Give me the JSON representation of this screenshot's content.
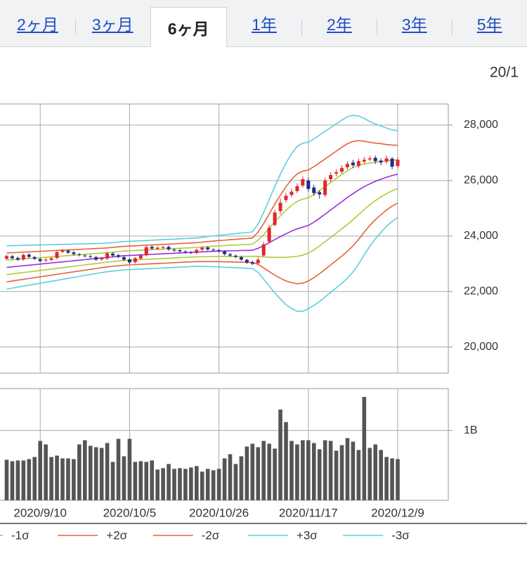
{
  "tabs": [
    {
      "label": "2ヶ月"
    },
    {
      "label": "3ヶ月"
    },
    {
      "label": "6ヶ月",
      "selected": true
    },
    {
      "label": "1年"
    },
    {
      "label": "2年"
    },
    {
      "label": "3年"
    },
    {
      "label": "5年"
    }
  ],
  "date_label": "20/1",
  "chart_data": [
    {
      "type": "candlestick",
      "up_color": "#e0262b",
      "down_color": "#1b2d8c",
      "grid": true,
      "ylim": [
        19060,
        28760
      ],
      "yticks": [
        {
          "value": 20000,
          "label": "20,000"
        },
        {
          "value": 22000,
          "label": "22,000"
        },
        {
          "value": 24000,
          "label": "24,000"
        },
        {
          "value": 26000,
          "label": "26,000"
        },
        {
          "value": 28000,
          "label": "28,000"
        }
      ],
      "open": [
        23180,
        23270,
        23210,
        23160,
        23330,
        23240,
        23170,
        23120,
        23140,
        23210,
        23430,
        23470,
        23410,
        23340,
        23300,
        23270,
        23240,
        23160,
        23190,
        23370,
        23310,
        23240,
        23160,
        23060,
        23190,
        23310,
        23610,
        23540,
        23570,
        23610,
        23510,
        23490,
        23440,
        23410,
        23390,
        23510,
        23590,
        23510,
        23490,
        23440,
        23340,
        23290,
        23240,
        23140,
        23060,
        23020,
        23300,
        23800,
        24400,
        24900,
        25300,
        25480,
        25620,
        25820,
        26000,
        25750,
        25580,
        25480,
        26050,
        26250,
        26320,
        26480,
        26650,
        26520,
        26680,
        26760,
        26820,
        26720,
        26680,
        26790,
        26520
      ],
      "high": [
        23330,
        23320,
        23260,
        23370,
        23380,
        23290,
        23220,
        23200,
        23250,
        23470,
        23530,
        23520,
        23460,
        23390,
        23350,
        23320,
        23290,
        23250,
        23430,
        23420,
        23360,
        23290,
        23210,
        23250,
        23350,
        23650,
        23660,
        23630,
        23650,
        23660,
        23560,
        23540,
        23490,
        23460,
        23550,
        23630,
        23640,
        23560,
        23540,
        23490,
        23390,
        23340,
        23290,
        23190,
        23110,
        23250,
        23800,
        24400,
        24950,
        25350,
        25550,
        25700,
        25900,
        26150,
        26100,
        25850,
        25650,
        26100,
        26300,
        26400,
        26550,
        26700,
        26750,
        26800,
        26850,
        26900,
        26900,
        26800,
        26900,
        26850,
        26850
      ],
      "low": [
        23130,
        23150,
        23100,
        23110,
        23200,
        23130,
        23050,
        23070,
        23090,
        23160,
        23380,
        23350,
        23300,
        23270,
        23230,
        23200,
        23100,
        23110,
        23140,
        23250,
        23200,
        23100,
        23000,
        23010,
        23140,
        23260,
        23500,
        23490,
        23520,
        23470,
        23430,
        23400,
        23370,
        23350,
        23340,
        23460,
        23470,
        23450,
        23400,
        23300,
        23250,
        23200,
        23100,
        23000,
        22950,
        22970,
        23250,
        23750,
        24350,
        24800,
        25200,
        25400,
        25550,
        25750,
        25600,
        25450,
        25350,
        25400,
        25950,
        26150,
        26250,
        26400,
        26450,
        26450,
        26600,
        26700,
        26600,
        26550,
        26600,
        26400,
        26450
      ],
      "close": [
        23280,
        23200,
        23150,
        23320,
        23250,
        23180,
        23100,
        23150,
        23200,
        23420,
        23480,
        23400,
        23350,
        23320,
        23280,
        23250,
        23150,
        23200,
        23380,
        23300,
        23250,
        23150,
        23050,
        23200,
        23300,
        23600,
        23550,
        23580,
        23600,
        23520,
        23480,
        23450,
        23420,
        23400,
        23500,
        23580,
        23520,
        23500,
        23450,
        23350,
        23300,
        23250,
        23150,
        23050,
        23000,
        23150,
        23700,
        24300,
        24850,
        25200,
        25450,
        25600,
        25800,
        26050,
        25700,
        25550,
        25500,
        26000,
        26200,
        26300,
        26450,
        26600,
        26550,
        26700,
        26750,
        26800,
        26700,
        26650,
        26800,
        26500,
        26750
      ],
      "series": [
        {
          "color": "#9b2fd6",
          "values": [
            22870,
            22890,
            22910,
            22930,
            22950,
            22970,
            22990,
            23010,
            23030,
            23050,
            23070,
            23090,
            23110,
            23130,
            23150,
            23170,
            23190,
            23210,
            23230,
            23250,
            23270,
            23290,
            23300,
            23310,
            23320,
            23330,
            23340,
            23350,
            23360,
            23370,
            23380,
            23390,
            23400,
            23410,
            23420,
            23430,
            23440,
            23450,
            23460,
            23460,
            23470,
            23470,
            23480,
            23480,
            23490,
            23560,
            23650,
            23760,
            23870,
            23980,
            24080,
            24180,
            24260,
            24320,
            24380,
            24500,
            24640,
            24790,
            24940,
            25090,
            25240,
            25390,
            25530,
            25660,
            25780,
            25880,
            25970,
            26050,
            26120,
            26180,
            26230
          ]
        },
        {
          "color": "#b3c93a",
          "values": [
            23130,
            23145,
            23160,
            23175,
            23190,
            23205,
            23220,
            23235,
            23250,
            23265,
            23280,
            23295,
            23310,
            23325,
            23340,
            23355,
            23370,
            23385,
            23402,
            23420,
            23440,
            23460,
            23470,
            23480,
            23490,
            23500,
            23510,
            23520,
            23530,
            23540,
            23550,
            23560,
            23570,
            23580,
            23590,
            23605,
            23620,
            23635,
            23650,
            23655,
            23670,
            23675,
            23690,
            23695,
            23710,
            23850,
            24050,
            24280,
            24510,
            24730,
            24930,
            25110,
            25250,
            25330,
            25380,
            25500,
            25640,
            25785,
            25930,
            26075,
            26220,
            26360,
            26470,
            26550,
            26600,
            26630,
            26660,
            26690,
            26710,
            26730,
            26750
          ]
        },
        {
          "name": "-1σ",
          "color": "#b3c93a",
          "values": [
            22610,
            22635,
            22660,
            22685,
            22710,
            22735,
            22760,
            22785,
            22810,
            22835,
            22860,
            22885,
            22910,
            22935,
            22960,
            22985,
            23010,
            23035,
            23058,
            23080,
            23100,
            23120,
            23130,
            23140,
            23150,
            23160,
            23170,
            23180,
            23190,
            23200,
            23210,
            23220,
            23230,
            23240,
            23250,
            23255,
            23260,
            23265,
            23270,
            23265,
            23270,
            23265,
            23270,
            23265,
            23270,
            23270,
            23250,
            23240,
            23230,
            23230,
            23230,
            23250,
            23270,
            23310,
            23380,
            23500,
            23640,
            23795,
            23950,
            24105,
            24260,
            24420,
            24590,
            24770,
            24960,
            25130,
            25280,
            25410,
            25530,
            25630,
            25710
          ]
        },
        {
          "name": "+2σ",
          "color": "#e8603a",
          "values": [
            23390,
            23400,
            23410,
            23420,
            23430,
            23440,
            23450,
            23460,
            23470,
            23480,
            23490,
            23500,
            23510,
            23520,
            23530,
            23540,
            23550,
            23560,
            23574,
            23590,
            23610,
            23630,
            23640,
            23650,
            23660,
            23670,
            23680,
            23690,
            23700,
            23710,
            23720,
            23730,
            23740,
            23750,
            23760,
            23780,
            23800,
            23820,
            23840,
            23850,
            23870,
            23880,
            23900,
            23910,
            23930,
            24140,
            24450,
            24800,
            25150,
            25480,
            25780,
            26040,
            26240,
            26340,
            26380,
            26500,
            26640,
            26780,
            26920,
            27060,
            27200,
            27330,
            27410,
            27440,
            27420,
            27380,
            27350,
            27330,
            27300,
            27280,
            27270
          ]
        },
        {
          "name": "-2σ",
          "color": "#e8603a",
          "values": [
            22350,
            22380,
            22410,
            22440,
            22470,
            22500,
            22530,
            22560,
            22590,
            22620,
            22650,
            22680,
            22710,
            22740,
            22770,
            22800,
            22830,
            22860,
            22886,
            22910,
            22930,
            22950,
            22960,
            22970,
            22980,
            22990,
            23000,
            23010,
            23020,
            23030,
            23040,
            23050,
            23060,
            23070,
            23080,
            23080,
            23080,
            23080,
            23080,
            23070,
            23070,
            23060,
            23060,
            23050,
            23050,
            22980,
            22850,
            22720,
            22590,
            22480,
            22380,
            22320,
            22280,
            22300,
            22380,
            22500,
            22640,
            22800,
            22960,
            23120,
            23280,
            23450,
            23650,
            23880,
            24140,
            24380,
            24590,
            24770,
            24940,
            25080,
            25190
          ]
        },
        {
          "name": "+3σ",
          "color": "#5ccfdc",
          "values": [
            23650,
            23655,
            23660,
            23665,
            23670,
            23675,
            23680,
            23685,
            23690,
            23695,
            23700,
            23705,
            23710,
            23715,
            23720,
            23725,
            23730,
            23735,
            23746,
            23760,
            23780,
            23800,
            23810,
            23820,
            23830,
            23840,
            23850,
            23860,
            23870,
            23880,
            23890,
            23900,
            23910,
            23920,
            23930,
            23955,
            23980,
            24005,
            24030,
            24045,
            24070,
            24085,
            24110,
            24125,
            24150,
            24430,
            24850,
            25320,
            25790,
            26230,
            26630,
            26970,
            27230,
            27350,
            27380,
            27500,
            27640,
            27775,
            27910,
            28045,
            28180,
            28300,
            28350,
            28330,
            28240,
            28130,
            28040,
            27970,
            27890,
            27830,
            27790
          ]
        },
        {
          "name": "-3σ",
          "color": "#5ccfdc",
          "values": [
            22090,
            22125,
            22160,
            22195,
            22230,
            22265,
            22300,
            22335,
            22370,
            22405,
            22440,
            22475,
            22510,
            22545,
            22580,
            22615,
            22650,
            22685,
            22714,
            22740,
            22760,
            22780,
            22790,
            22800,
            22810,
            22820,
            22830,
            22840,
            22850,
            22860,
            22870,
            22880,
            22890,
            22900,
            22910,
            22905,
            22900,
            22895,
            22890,
            22875,
            22870,
            22855,
            22850,
            22835,
            22830,
            22690,
            22450,
            22200,
            21950,
            21730,
            21530,
            21390,
            21290,
            21290,
            21380,
            21500,
            21640,
            21805,
            21970,
            22135,
            22300,
            22480,
            22710,
            22990,
            23320,
            23630,
            23900,
            24130,
            24350,
            24530,
            24670
          ]
        }
      ]
    },
    {
      "type": "bar",
      "color": "#555555",
      "grid": true,
      "categories": [
        null,
        null,
        null,
        null,
        null,
        null,
        "2020/9/10",
        null,
        null,
        null,
        null,
        null,
        null,
        null,
        null,
        null,
        null,
        null,
        null,
        null,
        null,
        null,
        "2020/10/5",
        null,
        null,
        null,
        null,
        null,
        null,
        null,
        null,
        null,
        null,
        null,
        null,
        null,
        null,
        null,
        "2020/10/26",
        null,
        null,
        null,
        null,
        null,
        null,
        null,
        null,
        null,
        null,
        null,
        null,
        null,
        null,
        null,
        "2020/11/17",
        null,
        null,
        null,
        null,
        null,
        null,
        null,
        null,
        null,
        null,
        null,
        null,
        null,
        null,
        null,
        "2020/12/9"
      ],
      "values": [
        0.58,
        0.56,
        0.57,
        0.57,
        0.59,
        0.62,
        0.85,
        0.8,
        0.62,
        0.64,
        0.6,
        0.6,
        0.59,
        0.8,
        0.86,
        0.78,
        0.76,
        0.75,
        0.82,
        0.55,
        0.88,
        0.63,
        0.88,
        0.55,
        0.56,
        0.55,
        0.57,
        0.44,
        0.46,
        0.52,
        0.45,
        0.46,
        0.45,
        0.47,
        0.49,
        0.41,
        0.45,
        0.43,
        0.45,
        0.6,
        0.66,
        0.52,
        0.63,
        0.77,
        0.81,
        0.76,
        0.85,
        0.81,
        0.74,
        1.3,
        1.12,
        0.85,
        0.8,
        0.86,
        0.86,
        0.82,
        0.73,
        0.86,
        0.85,
        0.71,
        0.79,
        0.89,
        0.84,
        0.72,
        1.48,
        0.75,
        0.8,
        0.72,
        0.62,
        0.6,
        0.59
      ],
      "ylim": [
        0,
        1.6
      ],
      "yticks": [
        {
          "value": 1,
          "label": "1B"
        }
      ]
    }
  ]
}
